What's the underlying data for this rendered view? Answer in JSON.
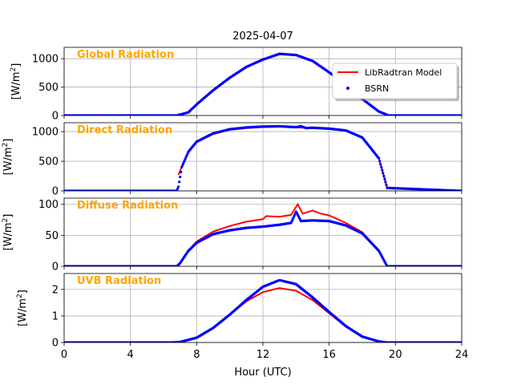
{
  "chart_data": {
    "type": "line",
    "title": "2025-04-07",
    "xlabel": "Hour (UTC)",
    "xlim": [
      0,
      24
    ],
    "xticks": [
      "0",
      "4",
      "8",
      "12",
      "16",
      "20",
      "24"
    ],
    "xtick_values": [
      0,
      4,
      8,
      12,
      16,
      20,
      24
    ],
    "grid": true,
    "legend": {
      "placement": "upper-right of top panel",
      "entries": [
        {
          "name": "LibRadtran Model",
          "color": "#ff0000",
          "style": "line"
        },
        {
          "name": "BSRN",
          "color": "#0000ff",
          "style": "dots"
        }
      ]
    },
    "panels": [
      {
        "title": "Global Radiation",
        "ylabel": "[W/m$^2$]",
        "ylabel_display": {
          "base": "[W/m",
          "sup": "2",
          "close": "]"
        },
        "ylim": [
          0,
          1200
        ],
        "yticks": [
          0,
          500,
          1000
        ],
        "series": [
          {
            "name": "LibRadtran Model",
            "x": [
              6.8,
              7.5,
              8,
              9,
              10,
              11,
              12,
              13,
              14,
              15,
              16,
              17,
              18,
              19,
              19.6
            ],
            "values": [
              0,
              50,
              190,
              440,
              660,
              850,
              980,
              1080,
              1060,
              960,
              760,
              540,
              290,
              70,
              0
            ]
          },
          {
            "name": "BSRN",
            "x": [
              0,
              6.8,
              7.5,
              8,
              9,
              10,
              11,
              12,
              13,
              14,
              15,
              16,
              17,
              18,
              19,
              19.6,
              24
            ],
            "values": [
              0,
              0,
              55,
              195,
              445,
              665,
              855,
              985,
              1085,
              1065,
              960,
              760,
              540,
              290,
              70,
              0,
              0
            ]
          }
        ]
      },
      {
        "title": "Direct Radiation",
        "ylabel": "[W/m$^2$]",
        "ylabel_display": {
          "base": "[W/m",
          "sup": "2",
          "close": "]"
        },
        "ylim": [
          0,
          1150
        ],
        "yticks": [
          0,
          500,
          1000
        ],
        "series": [
          {
            "name": "LibRadtran Model",
            "x": [
              6.9,
              7.1,
              7.5,
              8,
              9,
              10,
              11,
              12,
              13,
              14,
              15,
              16,
              17,
              18,
              19,
              19.5
            ],
            "values": [
              270,
              400,
              650,
              820,
              960,
              1030,
              1060,
              1080,
              1085,
              1070,
              1060,
              1050,
              1020,
              900,
              550,
              50
            ]
          },
          {
            "name": "BSRN",
            "x": [
              0,
              6.8,
              6.9,
              7.1,
              7.5,
              8,
              9,
              10,
              11,
              12,
              13,
              14,
              14.3,
              14.6,
              15,
              16,
              17,
              18,
              19,
              19.5,
              24
            ],
            "values": [
              0,
              0,
              70,
              400,
              660,
              830,
              970,
              1040,
              1070,
              1085,
              1090,
              1075,
              1090,
              1060,
              1065,
              1050,
              1020,
              900,
              550,
              50,
              0
            ]
          }
        ]
      },
      {
        "title": "Diffuse Radiation",
        "ylabel": "[W/m$^2$]",
        "ylabel_display": {
          "base": "[W/m",
          "sup": "2",
          "close": "]"
        },
        "ylim": [
          0,
          110
        ],
        "yticks": [
          0,
          50,
          100
        ],
        "series": [
          {
            "name": "LibRadtran Model",
            "x": [
              6.8,
              7,
              7.5,
              8,
              9,
              10,
              11,
              12,
              12.2,
              13,
              13.7,
              14.1,
              14.4,
              15,
              15.5,
              16,
              17,
              18,
              19,
              19.5
            ],
            "values": [
              0,
              5,
              25,
              40,
              56,
              65,
              72,
              76,
              81,
              80,
              83,
              100,
              85,
              90,
              85,
              82,
              70,
              55,
              25,
              0
            ]
          },
          {
            "name": "BSRN",
            "x": [
              0,
              6.8,
              7,
              7.5,
              8,
              9,
              10,
              11,
              12,
              13,
              13.7,
              14,
              14.3,
              15,
              16,
              17,
              18,
              19,
              19.5,
              24
            ],
            "values": [
              0,
              0,
              5,
              25,
              38,
              52,
              58,
              62,
              64,
              67,
              70,
              88,
              73,
              74,
              73,
              66,
              53,
              25,
              0,
              0
            ]
          }
        ]
      },
      {
        "title": "UVB Radiation",
        "ylabel": "[W/m$^2$]",
        "ylabel_display": {
          "base": "[W/m",
          "sup": "2",
          "close": "]"
        },
        "ylim": [
          0,
          2.6
        ],
        "yticks": [
          0,
          1,
          2
        ],
        "series": [
          {
            "name": "LibRadtran Model",
            "x": [
              6.5,
              7,
              8,
              9,
              10,
              11,
              12,
              13,
              14,
              15,
              16,
              17,
              18,
              19,
              19.5
            ],
            "values": [
              0,
              0.02,
              0.18,
              0.55,
              1.05,
              1.55,
              1.9,
              2.05,
              1.95,
              1.6,
              1.1,
              0.6,
              0.22,
              0.04,
              0
            ]
          },
          {
            "name": "BSRN",
            "x": [
              0,
              6.5,
              7,
              8,
              9,
              10,
              11,
              12,
              13,
              14,
              15,
              16,
              17,
              18,
              19,
              19.5,
              24
            ],
            "values": [
              0,
              0,
              0.02,
              0.18,
              0.55,
              1.05,
              1.6,
              2.1,
              2.35,
              2.2,
              1.7,
              1.15,
              0.62,
              0.22,
              0.04,
              0,
              0
            ]
          }
        ]
      }
    ]
  }
}
